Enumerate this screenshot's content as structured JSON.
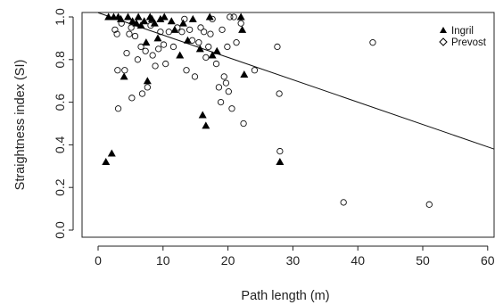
{
  "chart_data": {
    "type": "scatter",
    "title": "",
    "xlabel": "Path length (m)",
    "ylabel": "Straightness index (SI)",
    "xlim": [
      0,
      61
    ],
    "ylim": [
      0,
      1
    ],
    "x_ticks": [
      "0",
      "10",
      "20",
      "30",
      "40",
      "50",
      "60"
    ],
    "y_ticks": [
      "0.0",
      "0.2",
      "0.4",
      "0.6",
      "0.8",
      "1.0"
    ],
    "legend_position": "top-right",
    "grid": false,
    "series": [
      {
        "name": "Ingril",
        "marker": "filled-triangle",
        "points": [
          [
            1.2,
            0.32
          ],
          [
            2.1,
            0.36
          ],
          [
            1.6,
            1.0
          ],
          [
            2.4,
            1.0
          ],
          [
            3.1,
            1.0
          ],
          [
            3.5,
            0.99
          ],
          [
            4.0,
            0.72
          ],
          [
            4.6,
            1.0
          ],
          [
            5.3,
            0.98
          ],
          [
            5.9,
            0.97
          ],
          [
            6.2,
            1.0
          ],
          [
            6.6,
            0.96
          ],
          [
            7.1,
            0.98
          ],
          [
            7.4,
            0.88
          ],
          [
            7.6,
            0.7
          ],
          [
            8.0,
            1.0
          ],
          [
            8.3,
            0.99
          ],
          [
            8.7,
            0.97
          ],
          [
            9.2,
            0.9
          ],
          [
            9.6,
            0.99
          ],
          [
            10.2,
            1.0
          ],
          [
            11.3,
            0.98
          ],
          [
            11.8,
            0.94
          ],
          [
            12.6,
            0.82
          ],
          [
            13.1,
            0.97
          ],
          [
            13.8,
            0.89
          ],
          [
            14.6,
            0.99
          ],
          [
            15.7,
            0.85
          ],
          [
            16.1,
            0.54
          ],
          [
            16.6,
            0.49
          ],
          [
            17.2,
            1.0
          ],
          [
            17.6,
            0.82
          ],
          [
            18.3,
            0.84
          ],
          [
            22.0,
            1.0
          ],
          [
            22.2,
            0.94
          ],
          [
            22.5,
            0.73
          ],
          [
            28.0,
            0.32
          ]
        ]
      },
      {
        "name": "Prevost",
        "marker": "open-circle",
        "points": [
          [
            2.6,
            0.94
          ],
          [
            2.9,
            0.92
          ],
          [
            3.0,
            0.75
          ],
          [
            3.1,
            0.57
          ],
          [
            3.6,
            0.97
          ],
          [
            4.1,
            0.75
          ],
          [
            4.4,
            0.83
          ],
          [
            4.8,
            0.92
          ],
          [
            5.1,
            0.95
          ],
          [
            5.2,
            0.62
          ],
          [
            5.7,
            0.91
          ],
          [
            6.1,
            0.8
          ],
          [
            6.6,
            0.86
          ],
          [
            6.8,
            0.64
          ],
          [
            7.3,
            0.84
          ],
          [
            7.6,
            0.67
          ],
          [
            8.1,
            0.96
          ],
          [
            8.4,
            0.82
          ],
          [
            8.8,
            0.77
          ],
          [
            9.3,
            0.85
          ],
          [
            9.6,
            0.93
          ],
          [
            10.1,
            0.87
          ],
          [
            10.4,
            0.78
          ],
          [
            10.9,
            0.93
          ],
          [
            11.6,
            0.86
          ],
          [
            12.2,
            0.95
          ],
          [
            12.9,
            0.93
          ],
          [
            13.3,
            0.99
          ],
          [
            13.6,
            0.75
          ],
          [
            14.1,
            0.94
          ],
          [
            14.5,
            0.89
          ],
          [
            14.9,
            0.72
          ],
          [
            15.5,
            0.88
          ],
          [
            15.8,
            0.95
          ],
          [
            16.3,
            0.93
          ],
          [
            16.6,
            0.81
          ],
          [
            17.0,
            0.86
          ],
          [
            17.3,
            0.92
          ],
          [
            17.6,
            0.99
          ],
          [
            18.2,
            0.78
          ],
          [
            18.6,
            0.67
          ],
          [
            18.9,
            0.6
          ],
          [
            19.1,
            0.94
          ],
          [
            19.4,
            0.72
          ],
          [
            19.7,
            0.69
          ],
          [
            19.9,
            0.86
          ],
          [
            20.1,
            0.65
          ],
          [
            20.3,
            1.0
          ],
          [
            20.6,
            0.57
          ],
          [
            20.9,
            1.0
          ],
          [
            21.3,
            0.88
          ],
          [
            22.0,
            0.97
          ],
          [
            22.4,
            0.5
          ],
          [
            24.1,
            0.75
          ],
          [
            27.6,
            0.86
          ],
          [
            27.9,
            0.64
          ],
          [
            28.0,
            0.37
          ],
          [
            37.8,
            0.13
          ],
          [
            42.3,
            0.88
          ],
          [
            51.0,
            0.12
          ]
        ]
      }
    ],
    "fit_line": {
      "x1": 0,
      "y1": 1.02,
      "x2": 61,
      "y2": 0.38
    }
  }
}
